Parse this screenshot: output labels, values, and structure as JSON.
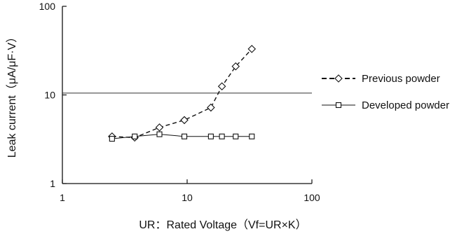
{
  "chart_data": {
    "type": "line",
    "x_scale": "log",
    "y_scale": "log",
    "xlim": [
      1,
      100
    ],
    "ylim": [
      1,
      100
    ],
    "x_ticks": [
      "1",
      "10",
      "100"
    ],
    "y_ticks": [
      "1",
      "10",
      "100"
    ],
    "xlabel": "UR：Rated Voltage（Vf=UR×K）",
    "ylabel": "Leak current（μA/μF·V）",
    "grid": "none",
    "legend_placement": "right",
    "series": [
      {
        "name": "Previous powder",
        "marker": "diamond",
        "line_style": "dashed",
        "x": [
          2.5,
          3.8,
          6,
          9.5,
          15.5,
          19,
          24.5,
          33
        ],
        "y": [
          3.4,
          3.3,
          4.3,
          5.2,
          7.2,
          12.5,
          21,
          33
        ]
      },
      {
        "name": "Developed powder",
        "marker": "square",
        "line_style": "solid",
        "x": [
          2.5,
          3.8,
          6,
          9.5,
          15.5,
          19,
          24.5,
          33
        ],
        "y": [
          3.2,
          3.4,
          3.6,
          3.4,
          3.4,
          3.4,
          3.4,
          3.4
        ]
      }
    ],
    "reference_lines": [
      {
        "y": 10.5,
        "style": "solid"
      }
    ]
  }
}
